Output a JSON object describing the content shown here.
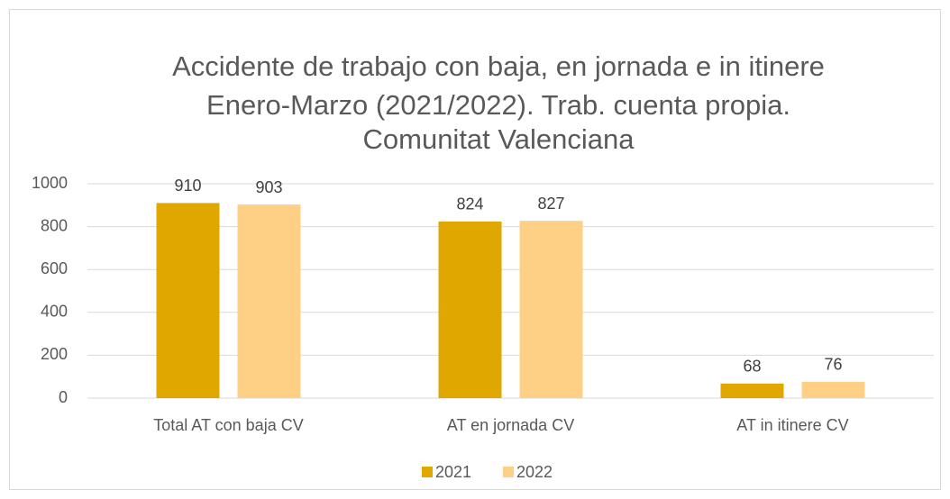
{
  "chart_data": {
    "type": "bar",
    "title": [
      "Accidente de trabajo con baja, en jornada e in itinere",
      "Enero-Marzo (2021/2022). Trab. cuenta propia.",
      "Comunitat Valenciana"
    ],
    "categories": [
      "Total AT con baja CV",
      "AT en jornada CV",
      "AT in itinere CV"
    ],
    "series": [
      {
        "name": "2021",
        "color": "#dfa700",
        "values": [
          910,
          824,
          68
        ]
      },
      {
        "name": "2022",
        "color": "#fdd086",
        "values": [
          903,
          827,
          76
        ]
      }
    ],
    "ylim": [
      0,
      1000
    ],
    "yticks": [
      0,
      200,
      400,
      600,
      800,
      1000
    ],
    "grid": true,
    "legend": "bottom"
  }
}
